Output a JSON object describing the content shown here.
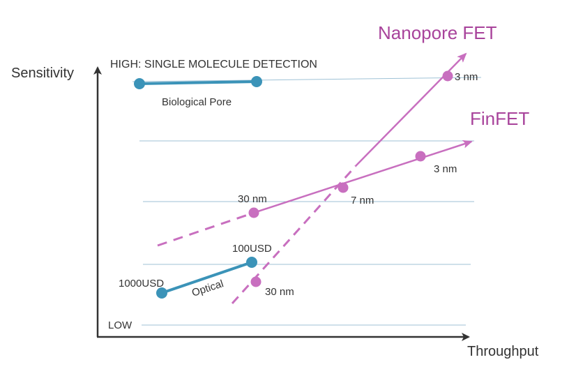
{
  "axes": {
    "y_title": "Sensitivity",
    "x_title": "Throughput",
    "high_label": "HIGH: SINGLE MOLECULE DETECTION",
    "low_label": "LOW"
  },
  "series": {
    "nanopore_fet": {
      "name": "Nanopore FET",
      "color": "#a8439b",
      "point_color": "#c86fbf"
    },
    "finfet": {
      "name": "FinFET",
      "color": "#a8439b",
      "point_color": "#c86fbf"
    },
    "biological_pore": {
      "name": "Biological Pore",
      "color": "#3b93b8"
    },
    "optical": {
      "name": "Optical",
      "color": "#3b93b8"
    }
  },
  "point_labels": {
    "nanopore_3nm": "3 nm",
    "finfet_3nm": "3 nm",
    "finfet_30nm": "30 nm",
    "crossover_7nm": "7 nm",
    "nanopore_30nm": "30 nm",
    "optical_100usd": "100USD",
    "optical_1000usd": "1000USD"
  },
  "colors": {
    "axis": "#333333",
    "gridline": "#9fc2d6",
    "purple": "#a8439b",
    "purple_point": "#c86fbf",
    "teal": "#3b93b8"
  }
}
